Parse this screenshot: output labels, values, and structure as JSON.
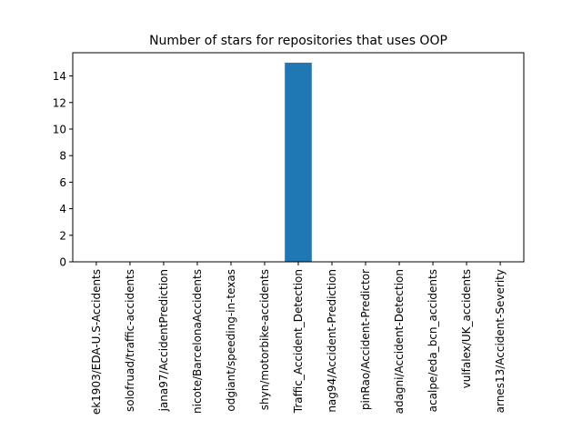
{
  "chart_data": {
    "type": "bar",
    "title": "Number of stars for repositories that uses OOP",
    "xlabel": "",
    "ylabel": "",
    "ylim": [
      0,
      15.75
    ],
    "yticks": [
      0,
      2,
      4,
      6,
      8,
      10,
      12,
      14
    ],
    "grid": false,
    "categories": [
      "ek1903/EDA-U.S-Accidents",
      "solofruad/traffic-accidents",
      "jana97/AccidentPrediction",
      "nicote/BarcelonaAccidents",
      "odgiant/speeding-in-texas",
      "shyn/motorbike-accidents",
      "Traffic_Accident_Detection",
      "nag94/Accident-Prediction",
      "pinRao/Accident-Predictor",
      "adagni/Accident-Detection",
      "acalpe/eda_bcn_accidents",
      "vulfalex/UK_accidents",
      "arnes13/Accident-Severity"
    ],
    "values": [
      0,
      0,
      0,
      0,
      0,
      0,
      15,
      0,
      0,
      0,
      0,
      0,
      0
    ],
    "colors": {
      "bar": "#1f77b4",
      "axis": "#000000",
      "background": "#ffffff"
    }
  }
}
